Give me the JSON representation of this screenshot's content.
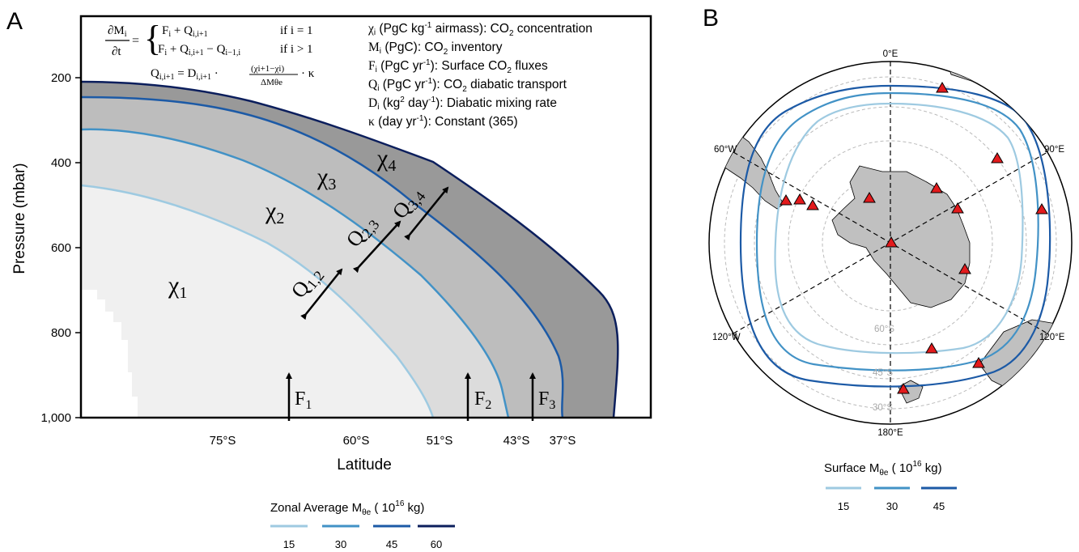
{
  "panels": {
    "a": {
      "letter": "A",
      "y_axis": {
        "label": "Pressure (mbar)",
        "ticks": [
          "200",
          "400",
          "600",
          "800",
          "1,000"
        ]
      },
      "x_axis": {
        "label": "Latitude",
        "ticks": [
          "75°S",
          "60°S",
          "51°S",
          "43°S",
          "37°S"
        ]
      },
      "equations": {
        "lhs_num": "∂M",
        "lhs_num_sub": "i",
        "lhs_den": "∂t",
        "case1": "F",
        "case1_sub": "i",
        "case1_rest": " + Q",
        "case1_sub2": "i,i+1",
        "case1_cond": "if i = 1",
        "case2": "F",
        "case2_sub": "i",
        "case2_rest": " + Q",
        "case2_sub2": "i,i+1",
        "case2_minus": " − Q",
        "case2_sub3": "i−1,i",
        "case2_cond": "if i > 1",
        "q_lhs": "Q",
        "q_lhs_sub": "i,i+1",
        "q_eq": " = D",
        "q_eq_sub": "i,i+1",
        "q_frac_num": "(χi+1−χi)",
        "q_frac_den": "ΔMθe",
        "q_tail": "· κ"
      },
      "legend_terms": [
        {
          "sym": "χ",
          "sub": "i",
          "text": " (PgC kg",
          "sup": "-1",
          "text2": " airmass): CO",
          "sub2": "2",
          "text3": " concentration"
        },
        {
          "sym": "M",
          "sub": "i",
          "text": " (PgC): CO",
          "sup": "",
          "text2": "",
          "sub2": "2",
          "text3": " inventory"
        },
        {
          "sym": "F",
          "sub": "i",
          "text": " (PgC yr",
          "sup": "-1",
          "text2": "): Surface CO",
          "sub2": "2",
          "text3": " fluxes"
        },
        {
          "sym": "Q",
          "sub": "i",
          "text": " (PgC yr",
          "sup": "-1",
          "text2": "): CO",
          "sub2": "2",
          "text3": " diabatic transport"
        },
        {
          "sym": "D",
          "sub": "i",
          "text": " (kg",
          "sup": "2",
          "text2": " day",
          "sub2": "",
          "text3": "): Diabatic mixing rate",
          "sup2": "-1"
        },
        {
          "sym": "κ",
          "sub": "",
          "text": " (day yr",
          "sup": "-1",
          "text2": "): Constant (365)",
          "sub2": "",
          "text3": ""
        }
      ],
      "region_labels": [
        {
          "sym": "χ",
          "sub": "1"
        },
        {
          "sym": "χ",
          "sub": "2"
        },
        {
          "sym": "χ",
          "sub": "3"
        },
        {
          "sym": "χ",
          "sub": "4"
        }
      ],
      "transport_labels": [
        {
          "sym": "Q",
          "sub": "1,2"
        },
        {
          "sym": "Q",
          "sub": "2,3"
        },
        {
          "sym": "Q",
          "sub": "3,4"
        }
      ],
      "flux_labels": [
        {
          "sym": "F",
          "sub": "1"
        },
        {
          "sym": "F",
          "sub": "2"
        },
        {
          "sym": "F",
          "sub": "3"
        }
      ],
      "legend": {
        "title": "Zonal Average M",
        "title_sub": "θe",
        "title_rest": " ( 10",
        "title_sup": "16",
        "title_end": " kg)",
        "items": [
          "15",
          "30",
          "45",
          "60"
        ],
        "colors": [
          "#9ecae1",
          "#4292c6",
          "#1c5aa6",
          "#0b1e5c"
        ]
      }
    },
    "b": {
      "letter": "B",
      "longitude_labels": [
        "0°E",
        "60°W",
        "90°E",
        "120°W",
        "120°E",
        "180°E"
      ],
      "latitude_labels": [
        "60°S",
        "45°S",
        "30°S"
      ],
      "legend": {
        "title": "Surface M",
        "title_sub": "θe",
        "title_rest": " ( 10",
        "title_sup": "16",
        "title_end": " kg)",
        "items": [
          "15",
          "30",
          "45"
        ],
        "colors": [
          "#9ecae1",
          "#4292c6",
          "#1c5aa6"
        ]
      },
      "station_marker_color": "#e31a1c"
    }
  }
}
